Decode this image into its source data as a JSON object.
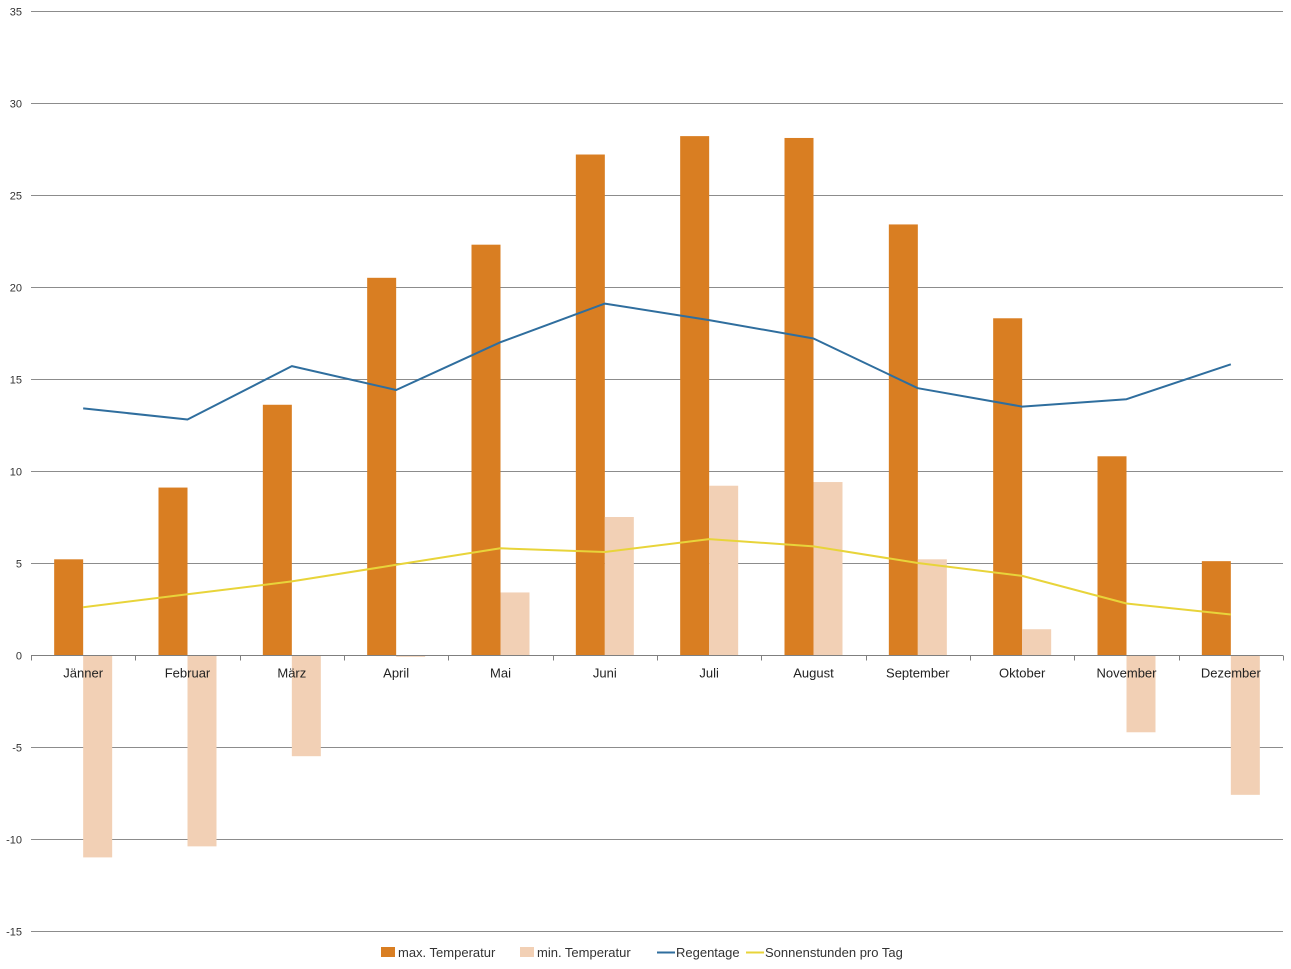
{
  "chart_data": {
    "type": "bar",
    "title": "",
    "xlabel": "",
    "ylabel": "",
    "ylim": [
      -15,
      35
    ],
    "yticks": [
      35,
      30,
      25,
      20,
      15,
      10,
      5,
      0,
      -5,
      -10,
      -15
    ],
    "grid": true,
    "legend_position": "bottom",
    "categories": [
      "Jänner",
      "Februar",
      "März",
      "April",
      "Mai",
      "Juni",
      "Juli",
      "August",
      "September",
      "Oktober",
      "November",
      "Dezember"
    ],
    "series": [
      {
        "name": "max. Temperatur",
        "kind": "bar",
        "color": "#D97E22",
        "values": [
          5.2,
          9.1,
          13.6,
          20.5,
          22.3,
          27.2,
          28.2,
          28.1,
          23.4,
          18.3,
          10.8,
          5.1
        ]
      },
      {
        "name": "min. Temperatur",
        "kind": "bar",
        "color": "#F2D0B5",
        "values": [
          -11.0,
          -10.4,
          -5.5,
          -0.1,
          3.4,
          7.5,
          9.2,
          9.4,
          5.2,
          1.4,
          -4.2,
          -7.6
        ]
      },
      {
        "name": "Regentage",
        "kind": "line",
        "color": "#2F6E9E",
        "values": [
          13.4,
          12.8,
          15.7,
          14.4,
          17.0,
          19.1,
          18.2,
          17.2,
          14.5,
          13.5,
          13.9,
          15.8
        ]
      },
      {
        "name": "Sonnenstunden pro Tag",
        "kind": "line",
        "color": "#E8D43A",
        "values": [
          2.6,
          3.3,
          4.0,
          4.9,
          5.8,
          5.6,
          6.3,
          5.9,
          5.0,
          4.3,
          2.8,
          2.2
        ]
      }
    ]
  }
}
